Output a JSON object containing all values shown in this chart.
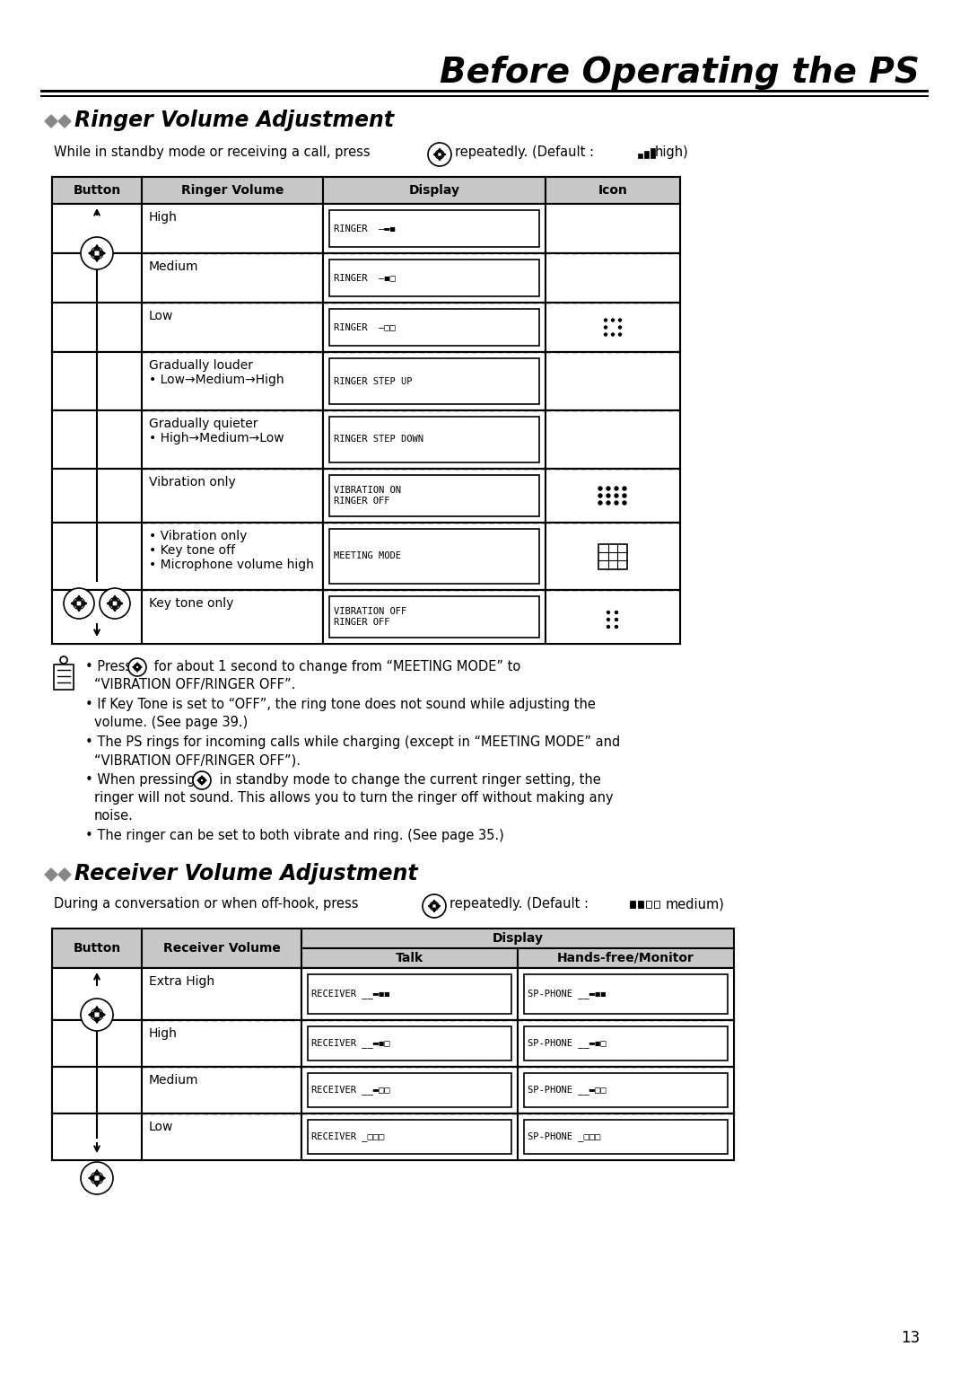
{
  "title": "Before Operating the PS",
  "section1_title": "Ringer Volume Adjustment",
  "section2_title": "Receiver Volume Adjustment",
  "ringer_table_headers": [
    "Button",
    "Ringer Volume",
    "Display",
    "Icon"
  ],
  "ringer_rows": [
    {
      "volume": "High",
      "display": "RINGER  __▬◼"
    },
    {
      "volume": "Medium",
      "display": "RINGER  __◼□"
    },
    {
      "volume": "Low",
      "display": "RINGER  _□□",
      "icon": "speaker_low"
    },
    {
      "volume": "Gradually louder\n• Low→Medium→High",
      "display": "RINGER STEP UP"
    },
    {
      "volume": "Gradually quieter\n• High→Medium→Low",
      "display": "RINGER STEP DOWN"
    },
    {
      "volume": "Vibration only",
      "display": "VIBRATION ON\nRINGER OFF",
      "icon": "vibrate"
    },
    {
      "volume": "• Vibration only\n• Key tone off\n• Microphone volume high",
      "display": "MEETING MODE",
      "icon": "meeting"
    },
    {
      "volume": "Key tone only",
      "display": "VIBRATION OFF\nRINGER OFF",
      "icon": "key_tone"
    }
  ],
  "receiver_rows": [
    {
      "volume": "Extra High",
      "talk": "RECEIVER __▬◼◼",
      "hands_free": "SP-PHONE __▬◼◼"
    },
    {
      "volume": "High",
      "talk": "RECEIVER __▬◼□",
      "hands_free": "SP-PHONE __▬◼□"
    },
    {
      "volume": "Medium",
      "talk": "RECEIVER __▬□□",
      "hands_free": "SP-PHONE __▬□□"
    },
    {
      "volume": "Low",
      "talk": "RECEIVER _□□□",
      "hands_free": "SP-PHONE _□□□"
    }
  ],
  "notes": [
    [
      "Press ",
      "nav",
      " for about 1 second to change from “MEETING MODE” to",
      "“VIBRATION OFF/RINGER OFF”."
    ],
    [
      "If Key Tone is set to “OFF”, the ring tone does not sound while adjusting the",
      "volume. (See page 39.)"
    ],
    [
      "The PS rings for incoming calls while charging (except in “MEETING MODE” and",
      "“VIBRATION OFF/RINGER OFF”)."
    ],
    [
      "When pressing ",
      "nav",
      " in standby mode to change the current ringer setting, the",
      "ringer will not sound. This allows you to turn the ringer off without making any",
      "noise."
    ],
    [
      "The ringer can be set to both vibrate and ring. (See page 35.)"
    ]
  ],
  "bg_color": "#ffffff",
  "header_bg": "#c8c8c8",
  "page_number": "13"
}
